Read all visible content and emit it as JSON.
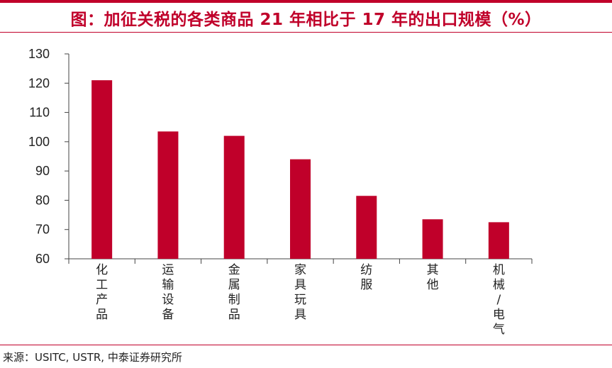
{
  "title": "图：加征关税的各类商品 21 年相比于 17 年的出口规模（%）",
  "source": "来源：USITC, USTR, 中泰证券研究所",
  "colors": {
    "accent": "#c0002a",
    "bar": "#c0002a",
    "axis": "#444444"
  },
  "chart_data": {
    "type": "bar",
    "title": "图：加征关税的各类商品 21 年相比于 17 年的出口规模（%）",
    "xlabel": "",
    "ylabel": "",
    "categories": [
      "化工产品",
      "运输设备",
      "金属制品",
      "家具玩具",
      "纺服",
      "其他",
      "机械/电气"
    ],
    "values": [
      121,
      103.5,
      102,
      94,
      81.5,
      73.5,
      72.5
    ],
    "ylim": [
      60,
      130
    ],
    "yticks": [
      60,
      70,
      80,
      90,
      100,
      110,
      120,
      130
    ],
    "grid": false,
    "legend": "none"
  }
}
